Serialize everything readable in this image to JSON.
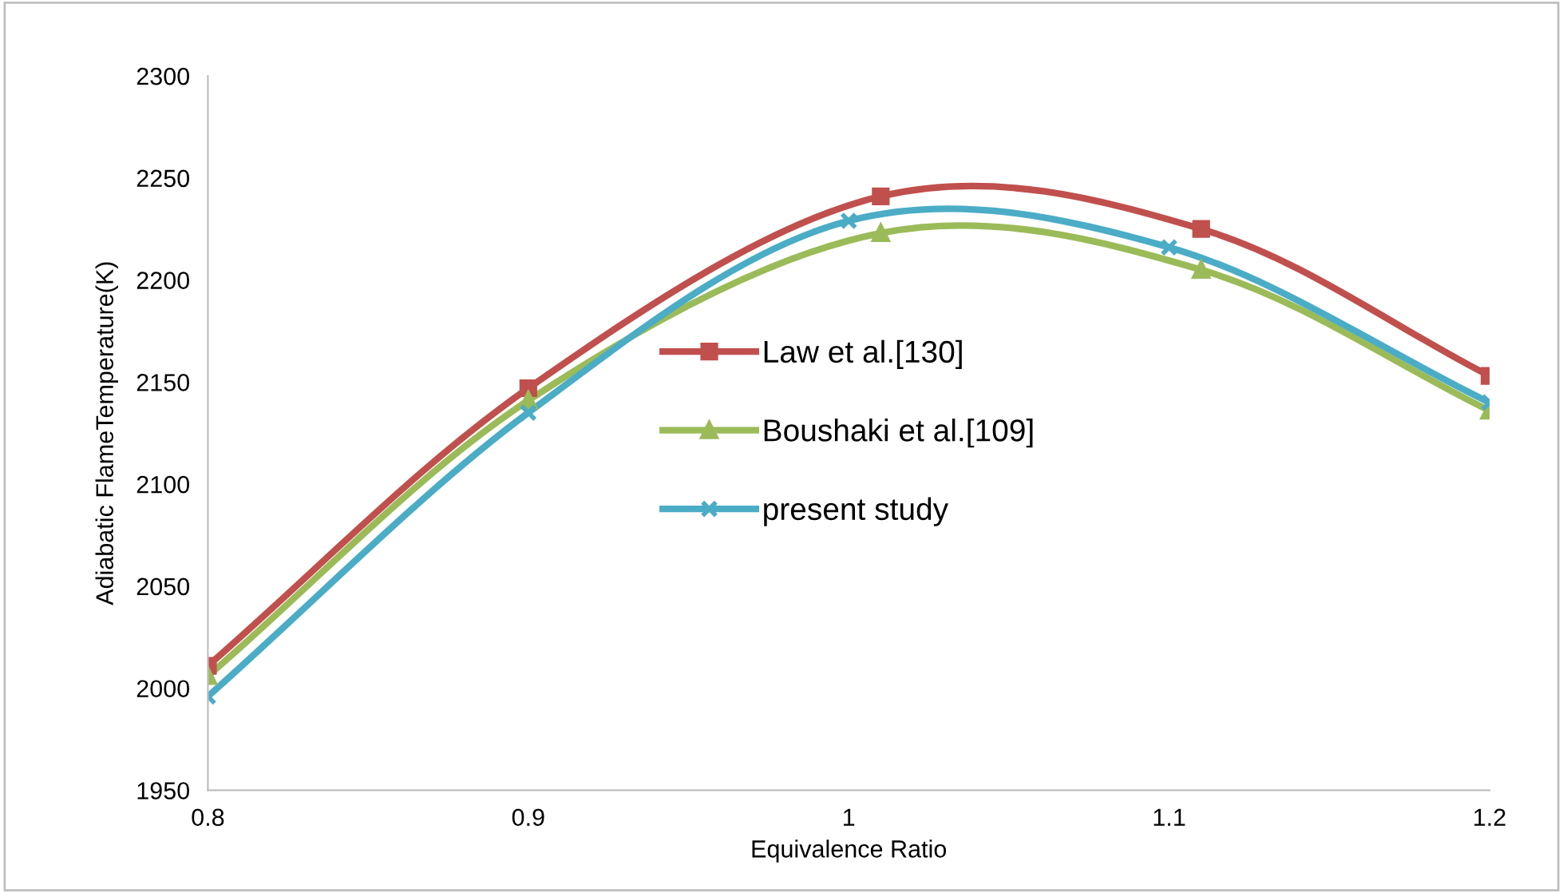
{
  "chart_data": {
    "type": "line",
    "xlabel": "Equivalence Ratio",
    "ylabel": "Adiabatic FlameTemperature(K)",
    "xlim": [
      0.8,
      1.2
    ],
    "xticks": [
      0.8,
      0.9,
      1,
      1.1,
      1.2
    ],
    "ylim": [
      1950,
      2300
    ],
    "yticks": [
      1950,
      2000,
      2050,
      2100,
      2150,
      2200,
      2250,
      2300
    ],
    "grid": false,
    "legend": "center",
    "line_style": "solid",
    "series": [
      {
        "name": "Law et al.[130]",
        "color": "#c0504d",
        "marker": "square",
        "x": [
          0.8,
          0.9,
          1.01,
          1.11,
          1.2
        ],
        "values": [
          2011,
          2147,
          2241,
          2225,
          2153
        ]
      },
      {
        "name": "Boushaki et al.[109]",
        "color": "#9bbb59",
        "marker": "triangle",
        "x": [
          0.8,
          0.9,
          1.01,
          1.11,
          1.2
        ],
        "values": [
          2006,
          2141,
          2223,
          2205,
          2136
        ]
      },
      {
        "name": "present study",
        "color": "#4bacc6",
        "marker": "cross",
        "x": [
          0.8,
          0.9,
          1.0,
          1.1,
          1.2
        ],
        "values": [
          1996,
          2135,
          2229,
          2216,
          2140
        ]
      }
    ]
  }
}
